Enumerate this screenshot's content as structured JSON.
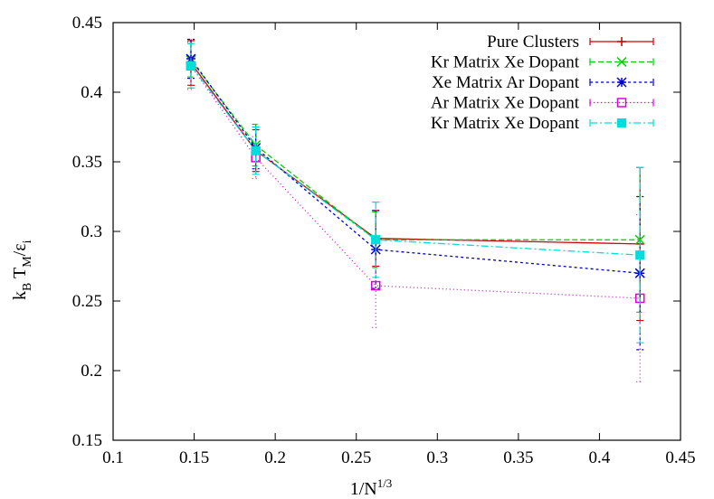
{
  "chart_data": {
    "type": "line",
    "xlabel": {
      "base": "1/N",
      "sup": "1/3"
    },
    "ylabel": {
      "k": "k",
      "k_sub": "B",
      "t": " T",
      "t_sub": "M",
      "slash": "/ε",
      "e_sub": "i"
    },
    "xlim": [
      0.1,
      0.45
    ],
    "ylim": [
      0.15,
      0.45
    ],
    "xticks": [
      "0.1",
      "0.15",
      "0.2",
      "0.25",
      "0.3",
      "0.35",
      "0.4",
      "0.45"
    ],
    "yticks": [
      "0.15",
      "0.2",
      "0.25",
      "0.3",
      "0.35",
      "0.4",
      "0.45"
    ],
    "grid": false,
    "legend_position": "top-right",
    "x": [
      0.148,
      0.188,
      0.262,
      0.425
    ],
    "series": [
      {
        "name": "Pure Clusters",
        "color": "#cc0000",
        "dash": "",
        "marker": "plus",
        "values": [
          0.421,
          0.358,
          0.295,
          0.291
        ],
        "errors": [
          0.016,
          0.015,
          0.02,
          0.055
        ]
      },
      {
        "name": "Kr Matrix Xe Dopant",
        "color": "#00cc00",
        "dash": "6,3",
        "marker": "x",
        "values": [
          0.423,
          0.362,
          0.294,
          0.294
        ],
        "errors": [
          0.012,
          0.015,
          0.02,
          0.052
        ]
      },
      {
        "name": "Xe Matrix Ar Dopant",
        "color": "#0000cc",
        "dash": "3,3",
        "marker": "star",
        "values": [
          0.424,
          0.36,
          0.287,
          0.27
        ],
        "errors": [
          0.014,
          0.015,
          0.028,
          0.055
        ]
      },
      {
        "name": "Ar Matrix Xe Dopant",
        "color": "#dd00dd",
        "dash": "1,3",
        "marker": "square",
        "values": [
          0.419,
          0.353,
          0.261,
          0.252
        ],
        "errors": [
          0.017,
          0.015,
          0.03,
          0.06
        ]
      },
      {
        "name": "Kr Matrix Xe Dopant",
        "color": "#00dddd",
        "dash": "8,3,2,3",
        "marker": "filled-square",
        "values": [
          0.419,
          0.358,
          0.294,
          0.283
        ],
        "errors": [
          0.016,
          0.017,
          0.027,
          0.063
        ]
      }
    ]
  }
}
